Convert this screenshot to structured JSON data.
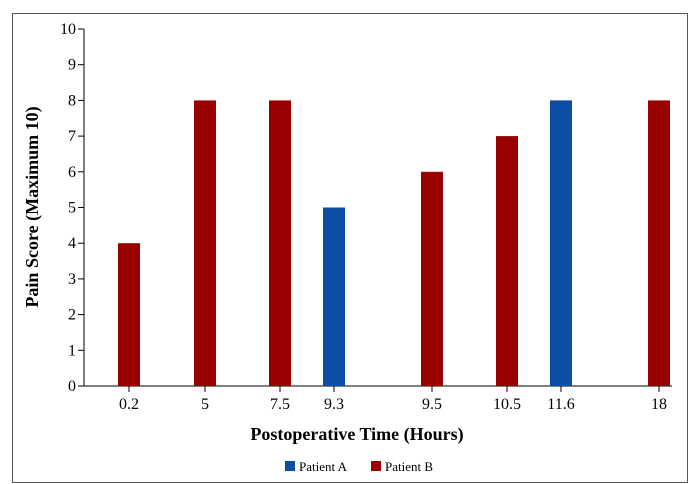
{
  "chart_data": {
    "type": "bar",
    "title": "",
    "xlabel": "Postoperative Time (Hours)",
    "ylabel": "Pain Score (Maximum 10)",
    "ylim": [
      0,
      10
    ],
    "yticks": [
      "0",
      "1",
      "2",
      "3",
      "4",
      "5",
      "6",
      "7",
      "8",
      "9",
      "10"
    ],
    "grid": false,
    "legend_position": "bottom",
    "categories": [
      "0.2",
      "5",
      "7.5",
      "9.3",
      "9.5",
      "10.5",
      "11.6",
      "18"
    ],
    "bars": [
      {
        "x": "0.2",
        "value": 4,
        "series": "Patient B"
      },
      {
        "x": "5",
        "value": 8,
        "series": "Patient B"
      },
      {
        "x": "7.5",
        "value": 8,
        "series": "Patient B"
      },
      {
        "x": "9.3",
        "value": 5,
        "series": "Patient A"
      },
      {
        "x": "9.5",
        "value": 6,
        "series": "Patient B"
      },
      {
        "x": "10.5",
        "value": 7,
        "series": "Patient B"
      },
      {
        "x": "11.6",
        "value": 8,
        "series": "Patient A"
      },
      {
        "x": "18",
        "value": 8,
        "series": "Patient B"
      }
    ],
    "series": [
      {
        "name": "Patient A",
        "color": "#0b4ea2"
      },
      {
        "name": "Patient B",
        "color": "#990000"
      }
    ]
  }
}
